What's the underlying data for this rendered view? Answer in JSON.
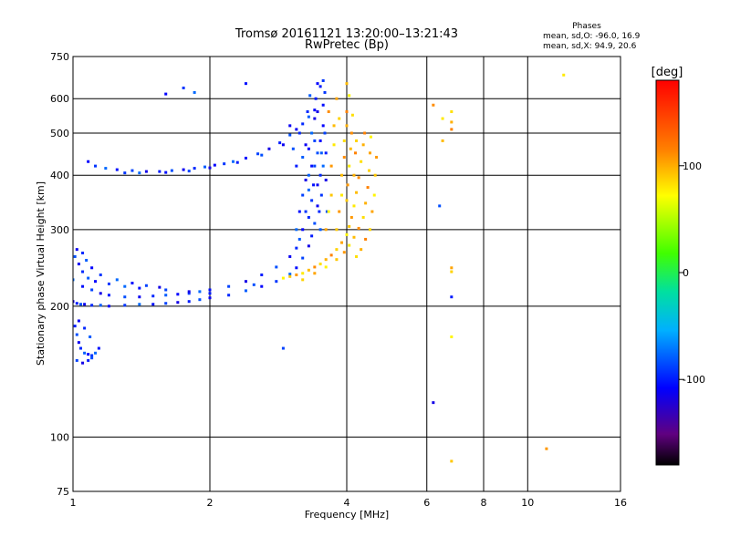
{
  "chart_data": {
    "type": "scatter",
    "title": "Tromsø 20161121 13:20:00–13:21:43",
    "subtitle": "RwPretec (Bp)",
    "stats": {
      "heading": "Phases",
      "line1": "mean, sd,O: -96.0, 16.9",
      "line2": "mean, sd,X:  94.9, 20.6"
    },
    "xlabel": "Frequency [MHz]",
    "ylabel": "Stationary phase Virtual Height [km]",
    "x_scale": "log2",
    "y_scale": "log",
    "xlim": [
      1,
      16
    ],
    "ylim": [
      75,
      750
    ],
    "x_ticks": [
      1,
      2,
      4,
      6,
      8,
      10,
      16
    ],
    "x_tick_labels": [
      "1",
      "2",
      "4",
      "6",
      "8",
      "10",
      "16"
    ],
    "y_ticks": [
      75,
      100,
      200,
      300,
      400,
      500,
      600,
      750
    ],
    "y_tick_labels": [
      "75",
      "100",
      "200",
      "300",
      "400",
      "500",
      "600",
      "750"
    ],
    "grid": true,
    "colorbar": {
      "label": "[deg]",
      "range": [
        -180,
        180
      ],
      "ticks": [
        100,
        0,
        -100
      ],
      "tick_labels": [
        "100",
        "0",
        "-100"
      ]
    },
    "series": [
      {
        "mode": "O",
        "phase_deg": -96,
        "points": [
          [
            1.0,
            205
          ],
          [
            1.02,
            203
          ],
          [
            1.04,
            202
          ],
          [
            1.06,
            202
          ],
          [
            1.1,
            201
          ],
          [
            1.15,
            201
          ],
          [
            1.2,
            200
          ],
          [
            1.3,
            201
          ],
          [
            1.4,
            202
          ],
          [
            1.5,
            202
          ],
          [
            1.6,
            203
          ],
          [
            1.7,
            204
          ],
          [
            1.8,
            205
          ],
          [
            1.9,
            207
          ],
          [
            2.0,
            209
          ],
          [
            2.2,
            212
          ],
          [
            2.4,
            217
          ],
          [
            2.6,
            222
          ],
          [
            2.8,
            228
          ],
          [
            3.0,
            237
          ],
          [
            3.1,
            245
          ],
          [
            3.2,
            258
          ],
          [
            3.3,
            275
          ],
          [
            3.35,
            290
          ],
          [
            3.4,
            310
          ],
          [
            3.45,
            340
          ],
          [
            3.5,
            400
          ],
          [
            3.52,
            450
          ],
          [
            3.55,
            520
          ],
          [
            3.58,
            620
          ],
          [
            1.0,
            230
          ],
          [
            1.05,
            222
          ],
          [
            1.1,
            218
          ],
          [
            1.15,
            214
          ],
          [
            1.2,
            212
          ],
          [
            1.3,
            210
          ],
          [
            1.4,
            210
          ],
          [
            1.5,
            211
          ],
          [
            1.6,
            212
          ],
          [
            1.7,
            213
          ],
          [
            1.8,
            214
          ],
          [
            1.9,
            216
          ],
          [
            2.0,
            218
          ],
          [
            2.2,
            222
          ],
          [
            2.4,
            228
          ],
          [
            2.6,
            236
          ],
          [
            2.8,
            246
          ],
          [
            3.0,
            260
          ],
          [
            3.1,
            272
          ],
          [
            3.15,
            285
          ],
          [
            3.2,
            300
          ],
          [
            3.25,
            330
          ],
          [
            3.3,
            370
          ],
          [
            3.35,
            420
          ],
          [
            3.4,
            480
          ],
          [
            3.45,
            560
          ],
          [
            3.5,
            640
          ],
          [
            1.01,
            260
          ],
          [
            1.03,
            250
          ],
          [
            1.05,
            240
          ],
          [
            1.08,
            232
          ],
          [
            1.12,
            228
          ],
          [
            1.2,
            225
          ],
          [
            1.3,
            222
          ],
          [
            1.4,
            220
          ],
          [
            1.6,
            218
          ],
          [
            1.8,
            216
          ],
          [
            2.0,
            214
          ],
          [
            2.5,
            224
          ],
          [
            1.02,
            270
          ],
          [
            1.05,
            265
          ],
          [
            1.07,
            255
          ],
          [
            1.1,
            245
          ],
          [
            1.15,
            236
          ],
          [
            1.25,
            230
          ],
          [
            1.35,
            226
          ],
          [
            1.45,
            223
          ],
          [
            1.55,
            221
          ],
          [
            1.01,
            180
          ],
          [
            1.02,
            172
          ],
          [
            1.03,
            165
          ],
          [
            1.04,
            160
          ],
          [
            1.06,
            156
          ],
          [
            1.08,
            155
          ],
          [
            1.1,
            154
          ],
          [
            1.12,
            156
          ],
          [
            1.14,
            160
          ],
          [
            1.02,
            150
          ],
          [
            1.05,
            148
          ],
          [
            1.08,
            150
          ],
          [
            1.1,
            152
          ],
          [
            1.03,
            185
          ],
          [
            1.06,
            178
          ],
          [
            1.09,
            170
          ],
          [
            1.08,
            430
          ],
          [
            1.12,
            420
          ],
          [
            1.18,
            415
          ],
          [
            1.25,
            412
          ],
          [
            1.35,
            410
          ],
          [
            1.45,
            408
          ],
          [
            1.55,
            408
          ],
          [
            1.65,
            410
          ],
          [
            1.75,
            412
          ],
          [
            1.85,
            415
          ],
          [
            1.95,
            418
          ],
          [
            2.05,
            422
          ],
          [
            2.15,
            425
          ],
          [
            2.25,
            430
          ],
          [
            2.4,
            438
          ],
          [
            2.55,
            448
          ],
          [
            2.7,
            460
          ],
          [
            2.85,
            475
          ],
          [
            3.0,
            495
          ],
          [
            3.1,
            510
          ],
          [
            3.2,
            525
          ],
          [
            3.3,
            545
          ],
          [
            3.4,
            565
          ],
          [
            1.3,
            405
          ],
          [
            1.4,
            405
          ],
          [
            1.6,
            406
          ],
          [
            1.8,
            409
          ],
          [
            2.0,
            416
          ],
          [
            2.3,
            428
          ],
          [
            2.6,
            445
          ],
          [
            2.9,
            470
          ],
          [
            3.3,
            320
          ],
          [
            3.3,
            400
          ],
          [
            3.3,
            460
          ],
          [
            3.35,
            350
          ],
          [
            3.35,
            500
          ],
          [
            3.38,
            380
          ],
          [
            3.4,
            420
          ],
          [
            3.4,
            540
          ],
          [
            3.42,
            600
          ],
          [
            3.45,
            450
          ],
          [
            3.45,
            380
          ],
          [
            3.48,
            330
          ],
          [
            3.5,
            300
          ],
          [
            3.5,
            480
          ],
          [
            3.52,
            360
          ],
          [
            3.55,
            420
          ],
          [
            3.55,
            580
          ],
          [
            3.58,
            500
          ],
          [
            3.6,
            390
          ],
          [
            3.6,
            450
          ],
          [
            3.62,
            330
          ],
          [
            3.25,
            470
          ],
          [
            3.28,
            560
          ],
          [
            3.32,
            610
          ],
          [
            3.45,
            650
          ],
          [
            3.55,
            660
          ],
          [
            3.1,
            300
          ],
          [
            3.15,
            330
          ],
          [
            3.2,
            360
          ],
          [
            3.25,
            390
          ],
          [
            3.1,
            420
          ],
          [
            3.05,
            460
          ],
          [
            3.0,
            520
          ],
          [
            3.15,
            500
          ],
          [
            3.2,
            440
          ],
          [
            1.6,
            615
          ],
          [
            1.75,
            635
          ],
          [
            1.85,
            620
          ],
          [
            2.4,
            650
          ],
          [
            2.9,
            160
          ],
          [
            6.2,
            120
          ],
          [
            6.8,
            210
          ],
          [
            6.4,
            340
          ]
        ]
      },
      {
        "mode": "X",
        "phase_deg": 95,
        "points": [
          [
            2.9,
            232
          ],
          [
            3.0,
            234
          ],
          [
            3.1,
            236
          ],
          [
            3.2,
            238
          ],
          [
            3.3,
            242
          ],
          [
            3.4,
            246
          ],
          [
            3.5,
            250
          ],
          [
            3.6,
            256
          ],
          [
            3.7,
            262
          ],
          [
            3.8,
            270
          ],
          [
            3.9,
            280
          ],
          [
            4.0,
            292
          ],
          [
            4.05,
            305
          ],
          [
            4.1,
            320
          ],
          [
            4.15,
            340
          ],
          [
            4.2,
            365
          ],
          [
            4.25,
            395
          ],
          [
            4.3,
            430
          ],
          [
            4.35,
            470
          ],
          [
            4.38,
            500
          ],
          [
            3.2,
            230
          ],
          [
            3.4,
            238
          ],
          [
            3.6,
            246
          ],
          [
            3.8,
            256
          ],
          [
            3.95,
            266
          ],
          [
            4.05,
            276
          ],
          [
            4.15,
            288
          ],
          [
            4.25,
            302
          ],
          [
            4.35,
            320
          ],
          [
            4.4,
            345
          ],
          [
            4.45,
            375
          ],
          [
            4.48,
            410
          ],
          [
            4.5,
            450
          ],
          [
            4.52,
            490
          ],
          [
            3.8,
            300
          ],
          [
            3.85,
            330
          ],
          [
            3.9,
            360
          ],
          [
            3.9,
            400
          ],
          [
            3.95,
            440
          ],
          [
            3.95,
            480
          ],
          [
            4.0,
            520
          ],
          [
            4.0,
            560
          ],
          [
            3.85,
            540
          ],
          [
            3.8,
            600
          ],
          [
            4.05,
            610
          ],
          [
            4.0,
            350
          ],
          [
            4.02,
            380
          ],
          [
            4.05,
            420
          ],
          [
            4.08,
            460
          ],
          [
            4.1,
            500
          ],
          [
            4.12,
            550
          ],
          [
            4.15,
            400
          ],
          [
            4.18,
            450
          ],
          [
            4.2,
            480
          ],
          [
            3.6,
            300
          ],
          [
            3.65,
            330
          ],
          [
            3.7,
            360
          ],
          [
            3.7,
            420
          ],
          [
            3.75,
            470
          ],
          [
            3.75,
            520
          ],
          [
            3.65,
            560
          ],
          [
            4.2,
            260
          ],
          [
            4.3,
            270
          ],
          [
            4.4,
            285
          ],
          [
            4.5,
            300
          ],
          [
            4.55,
            330
          ],
          [
            4.6,
            360
          ],
          [
            4.62,
            400
          ],
          [
            4.65,
            440
          ],
          [
            6.5,
            540
          ],
          [
            6.5,
            480
          ],
          [
            6.2,
            580
          ],
          [
            6.8,
            560
          ],
          [
            6.8,
            530
          ],
          [
            6.8,
            510
          ],
          [
            6.8,
            240
          ],
          [
            6.8,
            245
          ],
          [
            6.8,
            170
          ],
          [
            6.8,
            88
          ],
          [
            11.0,
            94
          ],
          [
            12.0,
            680
          ],
          [
            4.0,
            650
          ]
        ]
      }
    ]
  }
}
